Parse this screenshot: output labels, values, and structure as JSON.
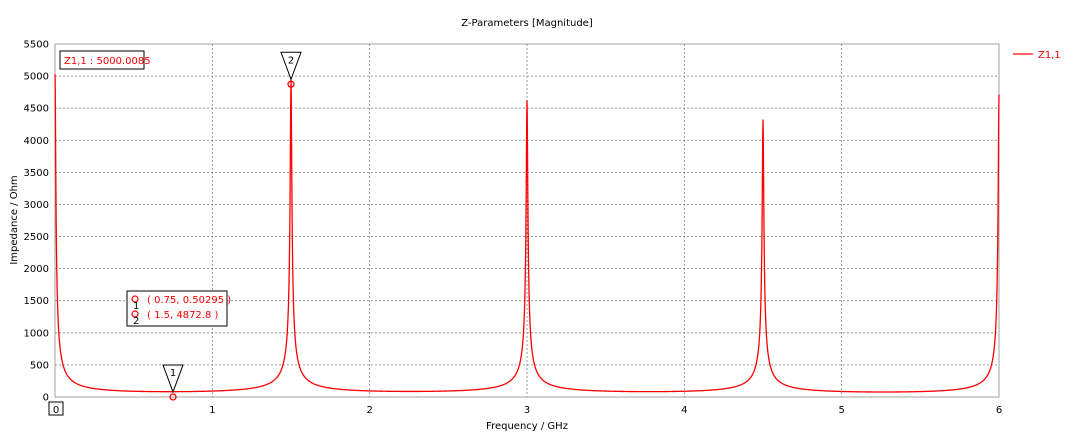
{
  "chart_data": {
    "type": "line",
    "title": "Z-Parameters [Magnitude]",
    "xlabel": "Frequency / GHz",
    "ylabel": "Impedance / Ohm",
    "xlim": [
      0,
      6
    ],
    "ylim": [
      0,
      5500
    ],
    "x_ticks": [
      "0",
      "1",
      "2",
      "3",
      "4",
      "5",
      "6"
    ],
    "y_ticks": [
      "0",
      "500",
      "1000",
      "1500",
      "2000",
      "2500",
      "3000",
      "3500",
      "4000",
      "4500",
      "5000",
      "5500"
    ],
    "grid": true,
    "legend_position": "right",
    "series": [
      {
        "name": "Z1,1",
        "color": "#ff0000",
        "resonances": [
          {
            "x": 0.0,
            "peak": 5000
          },
          {
            "x": 1.5,
            "peak": 4900
          },
          {
            "x": 3.0,
            "peak": 4580
          },
          {
            "x": 4.5,
            "peak": 4280
          },
          {
            "x": 6.0,
            "peak": 4680
          }
        ]
      }
    ],
    "markers": [
      {
        "label": "1",
        "x": 0.75,
        "y": 0.50295,
        "text": "( 0.75, 0.50295 )"
      },
      {
        "label": "2",
        "x": 1.5,
        "y": 4872.8,
        "text": "( 1.5, 4872.8 )"
      }
    ],
    "annotation": "Z1,1 : 5000.0085",
    "x_origin_label": "0"
  }
}
